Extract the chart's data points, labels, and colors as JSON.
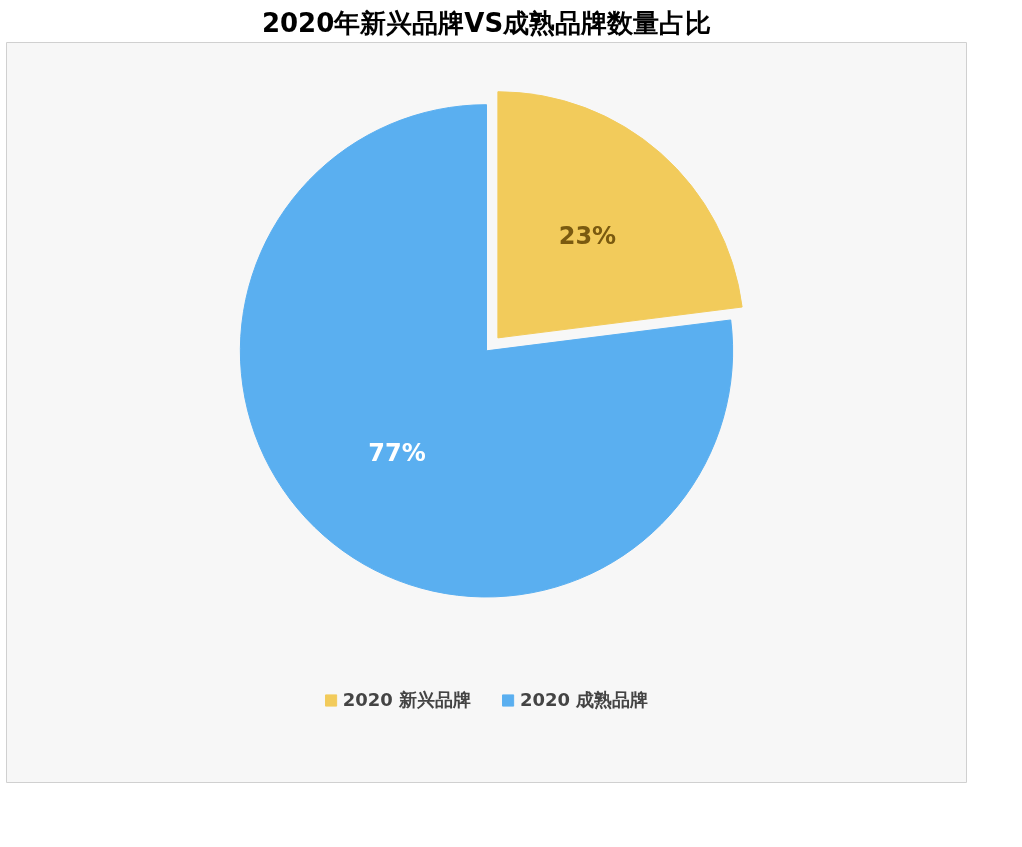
{
  "chart_data": {
    "type": "pie",
    "title": "2020年新兴品牌VS成熟品牌数量占比",
    "categories": [
      "2020 新兴品牌",
      "2020 成熟品牌"
    ],
    "values": [
      23,
      77
    ],
    "colors": [
      "#f2cb5b",
      "#5aaff0"
    ],
    "value_labels": [
      "23%",
      "77%"
    ],
    "legend": "bottom"
  }
}
